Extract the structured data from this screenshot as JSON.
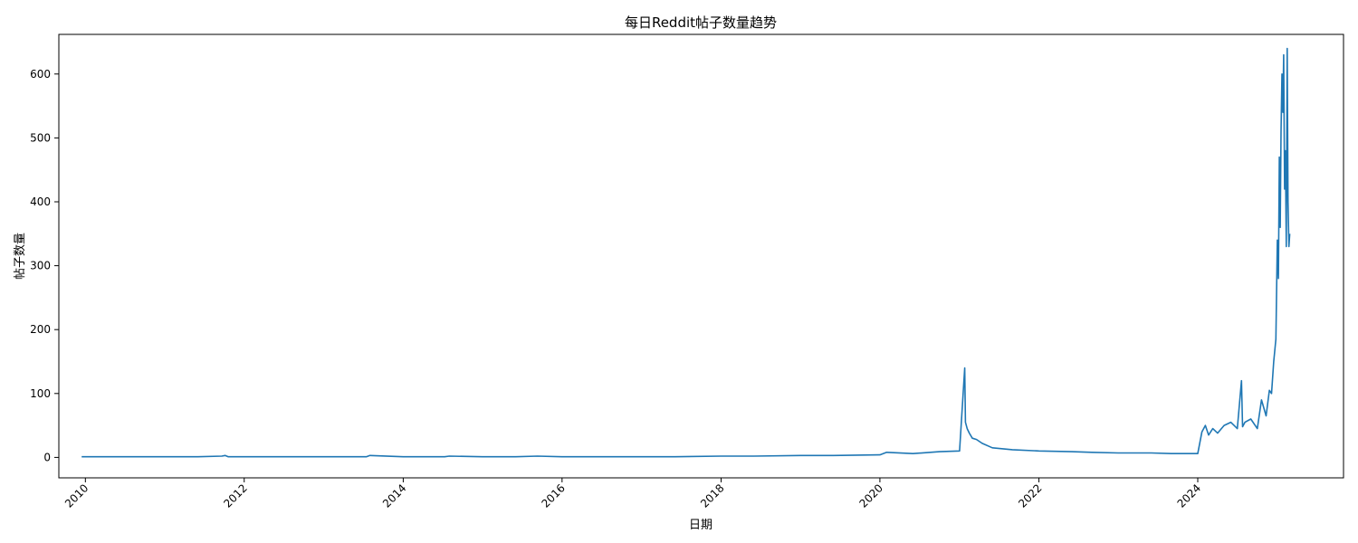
{
  "chart_data": {
    "type": "line",
    "title": "每日Reddit帖子数量趋势",
    "xlabel": "日期",
    "ylabel": "帖子数量",
    "x_range": [
      "2009-09-01",
      "2025-11-01"
    ],
    "ylim": [
      -32,
      662
    ],
    "x_ticks": [
      "2010",
      "2012",
      "2014",
      "2016",
      "2018",
      "2020",
      "2022",
      "2024"
    ],
    "y_ticks": [
      "0",
      "100",
      "200",
      "300",
      "400",
      "500",
      "600"
    ],
    "grid": false,
    "legend": "none",
    "series_color": "#1f77b4",
    "series": [
      {
        "x": [
          "2009-12-15",
          "2010-06-01",
          "2011-01-01",
          "2011-06-01",
          "2011-09-20",
          "2011-10-05",
          "2011-10-20",
          "2012-03-01",
          "2012-09-01",
          "2013-03-01",
          "2013-07-15",
          "2013-08-01",
          "2014-01-01",
          "2014-07-10",
          "2014-08-01",
          "2015-01-01",
          "2015-06-01",
          "2015-09-10",
          "2016-01-01",
          "2016-06-01",
          "2017-01-01",
          "2017-06-01",
          "2018-01-01",
          "2018-06-01",
          "2019-01-01",
          "2019-06-01",
          "2020-01-01",
          "2020-02-01",
          "2020-06-01",
          "2020-10-01",
          "2021-01-01",
          "2021-01-25",
          "2021-01-28",
          "2021-02-05",
          "2021-02-15",
          "2021-03-01",
          "2021-03-20",
          "2021-04-15",
          "2021-06-01",
          "2021-09-01",
          "2022-01-01",
          "2022-06-01",
          "2022-09-01",
          "2023-01-01",
          "2023-06-01",
          "2023-09-01",
          "2024-01-01",
          "2024-01-20",
          "2024-02-05",
          "2024-02-20",
          "2024-03-10",
          "2024-04-01",
          "2024-05-01",
          "2024-06-01",
          "2024-07-01",
          "2024-07-20",
          "2024-07-25",
          "2024-08-05",
          "2024-09-01",
          "2024-10-01",
          "2024-10-20",
          "2024-11-10",
          "2024-11-25",
          "2024-12-05",
          "2024-12-15",
          "2024-12-25",
          "2025-01-01",
          "2025-01-06",
          "2025-01-10",
          "2025-01-14",
          "2025-01-18",
          "2025-01-22",
          "2025-01-26",
          "2025-01-30",
          "2025-02-03",
          "2025-02-07",
          "2025-02-11",
          "2025-02-15",
          "2025-02-19",
          "2025-02-23",
          "2025-02-27"
        ],
        "y": [
          1,
          1,
          1,
          1,
          2,
          3,
          1,
          1,
          1,
          1,
          1,
          3,
          1,
          1,
          2,
          1,
          1,
          2,
          1,
          1,
          1,
          1,
          2,
          2,
          3,
          3,
          4,
          8,
          6,
          9,
          10,
          140,
          55,
          45,
          38,
          30,
          28,
          22,
          15,
          12,
          10,
          9,
          8,
          7,
          7,
          6,
          6,
          40,
          50,
          35,
          45,
          38,
          50,
          55,
          45,
          120,
          48,
          55,
          60,
          45,
          90,
          65,
          105,
          100,
          150,
          185,
          340,
          280,
          470,
          360,
          510,
          600,
          540,
          630,
          420,
          480,
          330,
          640,
          400,
          330,
          350
        ]
      }
    ]
  }
}
